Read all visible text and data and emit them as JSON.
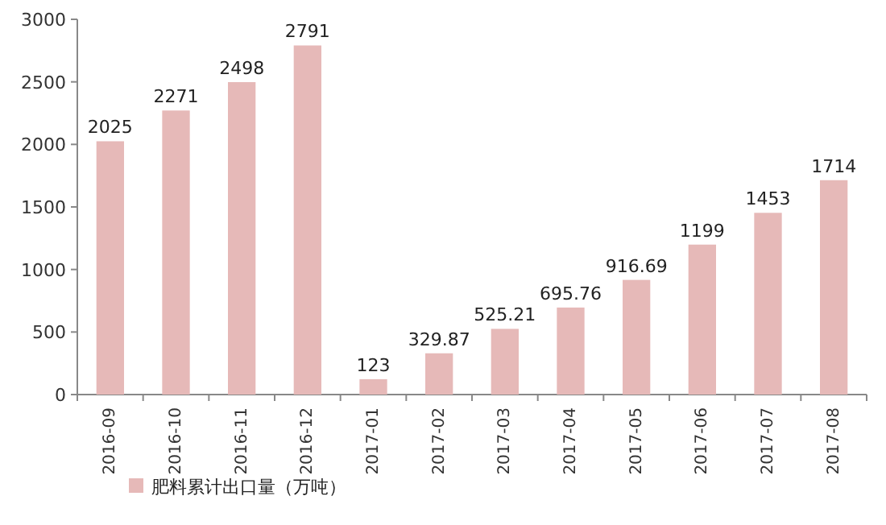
{
  "chart_data": {
    "type": "bar",
    "categories": [
      "2016-09",
      "2016-10",
      "2016-11",
      "2016-12",
      "2017-01",
      "2017-02",
      "2017-03",
      "2017-04",
      "2017-05",
      "2017-06",
      "2017-07",
      "2017-08"
    ],
    "series": [
      {
        "name": "肥料累计出口量（万吨）",
        "color": "#e6b9b8",
        "values": [
          2025,
          2271,
          2498,
          2791,
          123,
          329.87,
          525.21,
          695.76,
          916.69,
          1199,
          1453,
          1714
        ]
      }
    ],
    "ylim": [
      0,
      3000
    ],
    "yticks": [
      0,
      500,
      1000,
      1500,
      2000,
      2500,
      3000
    ],
    "data_labels": true,
    "legend": "bottom left"
  }
}
